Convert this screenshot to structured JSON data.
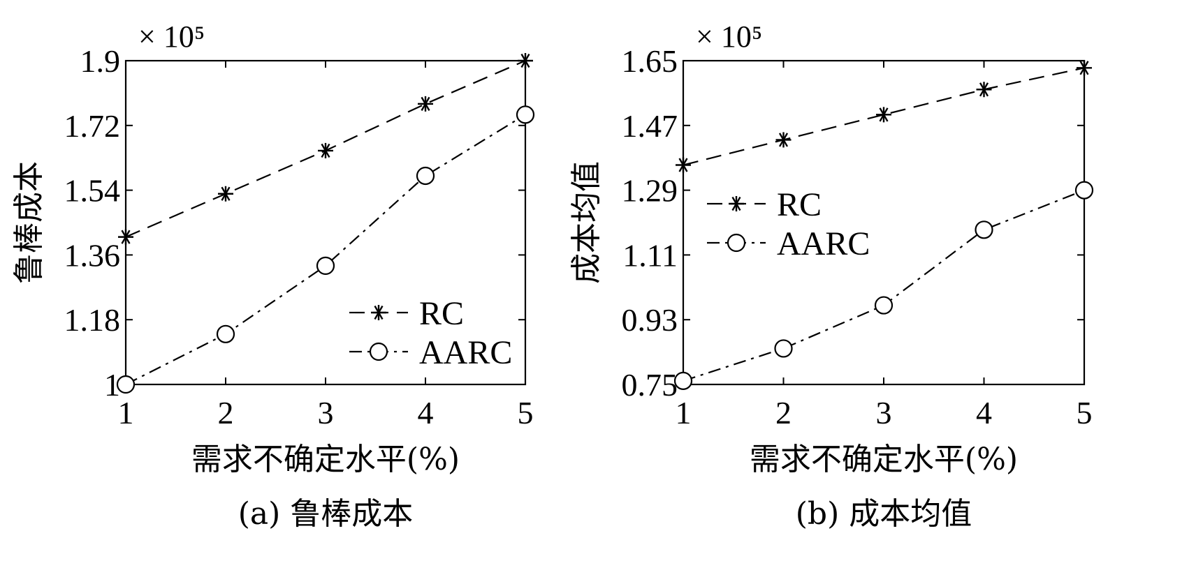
{
  "chart_data": [
    {
      "type": "line",
      "caption": "(a) 鲁棒成本",
      "xlabel": "需求不确定水平(%)",
      "ylabel": "鲁棒成本",
      "y_multiplier": "× 10⁵",
      "x": [
        1,
        2,
        3,
        4,
        5
      ],
      "xticks": [
        "1",
        "2",
        "3",
        "4",
        "5"
      ],
      "xlim": [
        1,
        5
      ],
      "ylim": [
        1.0,
        1.9
      ],
      "yticks": [
        "1",
        "1.18",
        "1.36",
        "1.54",
        "1.72",
        "1.9"
      ],
      "ytick_values": [
        1.0,
        1.18,
        1.36,
        1.54,
        1.72,
        1.9
      ],
      "legend_position": "lower-right",
      "series": [
        {
          "name": "RC",
          "marker": "asterisk",
          "dash": "dashed",
          "values": [
            1.41,
            1.53,
            1.65,
            1.78,
            1.9
          ]
        },
        {
          "name": "AARC",
          "marker": "circle",
          "dash": "dashdot",
          "values": [
            1.0,
            1.14,
            1.33,
            1.58,
            1.75
          ]
        }
      ]
    },
    {
      "type": "line",
      "caption": "(b) 成本均值",
      "xlabel": "需求不确定水平(%)",
      "ylabel": "成本均值",
      "y_multiplier": "× 10⁵",
      "x": [
        1,
        2,
        3,
        4,
        5
      ],
      "xticks": [
        "1",
        "2",
        "3",
        "4",
        "5"
      ],
      "xlim": [
        1,
        5
      ],
      "ylim": [
        0.75,
        1.65
      ],
      "yticks": [
        "0.75",
        "0.93",
        "1.11",
        "1.29",
        "1.47",
        "1.65"
      ],
      "ytick_values": [
        0.75,
        0.93,
        1.11,
        1.29,
        1.47,
        1.65
      ],
      "legend_position": "upper-left",
      "series": [
        {
          "name": "RC",
          "marker": "asterisk",
          "dash": "dashed",
          "values": [
            1.36,
            1.43,
            1.5,
            1.57,
            1.63
          ]
        },
        {
          "name": "AARC",
          "marker": "circle",
          "dash": "dashdot",
          "values": [
            0.76,
            0.85,
            0.97,
            1.18,
            1.29
          ]
        }
      ]
    }
  ]
}
